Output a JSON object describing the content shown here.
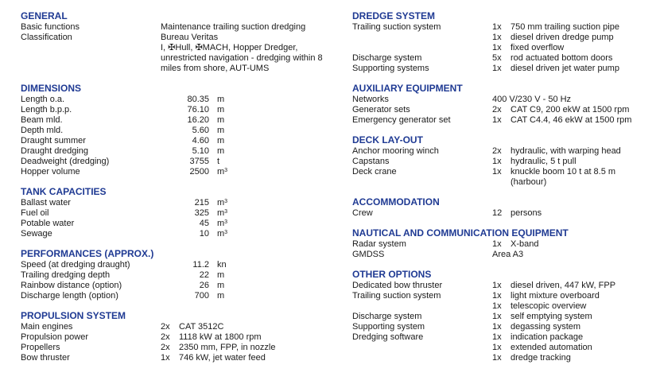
{
  "colors": {
    "heading": "#1f3a93",
    "text": "#1a1a1a"
  },
  "left_sections": [
    {
      "title": "GENERAL",
      "rows": [
        {
          "label": "Basic functions",
          "text": "Maintenance trailing suction dredging"
        },
        {
          "label": "Classification",
          "text": "Bureau Veritas"
        },
        {
          "label": "",
          "text": "I, ✠Hull, ✠MACH, Hopper Dredger,"
        },
        {
          "label": "",
          "text": "unrestricted navigation - dredging within 8"
        },
        {
          "label": "",
          "text": "miles from shore, AUT-UMS"
        }
      ]
    },
    {
      "title": "DIMENSIONS",
      "rows": [
        {
          "label": "Length o.a.",
          "num": "80.35",
          "unit": "m"
        },
        {
          "label": "Length b.p.p.",
          "num": "76.10",
          "unit": "m"
        },
        {
          "label": "Beam mld.",
          "num": "16.20",
          "unit": "m"
        },
        {
          "label": "Depth mld.",
          "num": "5.60",
          "unit": "m"
        },
        {
          "label": "Draught summer",
          "num": "4.60",
          "unit": "m"
        },
        {
          "label": "Draught dredging",
          "num": "5.10",
          "unit": "m"
        },
        {
          "label": "Deadweight (dredging)",
          "num": "3755",
          "unit": "t"
        },
        {
          "label": "Hopper volume",
          "num": "2500",
          "unit": "m",
          "sup": "3"
        }
      ]
    },
    {
      "title": "TANK CAPACITIES",
      "rows": [
        {
          "label": "Ballast water",
          "num": "215",
          "unit": "m",
          "sup": "3"
        },
        {
          "label": "Fuel oil",
          "num": "325",
          "unit": "m",
          "sup": "3"
        },
        {
          "label": "Potable water",
          "num": "45",
          "unit": "m",
          "sup": "3"
        },
        {
          "label": "Sewage",
          "num": "10",
          "unit": "m",
          "sup": "3"
        }
      ]
    },
    {
      "title": "PERFORMANCES (APPROX.)",
      "rows": [
        {
          "label": "Speed (at dredging draught)",
          "num": "11.2",
          "unit": "kn"
        },
        {
          "label": "Trailing dredging depth",
          "num": "22",
          "unit": "m"
        },
        {
          "label": "Rainbow distance (option)",
          "num": "26",
          "unit": "m"
        },
        {
          "label": "Discharge length (option)",
          "num": "700",
          "unit": "m"
        }
      ]
    },
    {
      "title": "PROPULSION SYSTEM",
      "rows": [
        {
          "label": "Main engines",
          "qty": "2x",
          "text": "CAT 3512C"
        },
        {
          "label": "Propulsion power",
          "qty": "2x",
          "text": "1118 kW at 1800 rpm"
        },
        {
          "label": "Propellers",
          "qty": "2x",
          "text": "2350 mm, FPP, in nozzle"
        },
        {
          "label": "Bow thruster",
          "qty": "1x",
          "text": "746 kW, jet water feed"
        }
      ]
    }
  ],
  "right_sections": [
    {
      "title": "DREDGE SYSTEM",
      "rows": [
        {
          "label": "Trailing suction system",
          "qty": "1x",
          "text": "750 mm trailing suction pipe"
        },
        {
          "label": "",
          "qty": "1x",
          "text": "diesel driven dredge pump"
        },
        {
          "label": "",
          "qty": "1x",
          "text": "fixed overflow"
        },
        {
          "label": "Discharge system",
          "qty": "5x",
          "text": "rod actuated bottom doors"
        },
        {
          "label": "Supporting systems",
          "qty": "1x",
          "text": "diesel driven jet water pump"
        }
      ]
    },
    {
      "title": "AUXILIARY EQUIPMENT",
      "rows": [
        {
          "label": "Networks",
          "text": "400  V/230 V - 50 Hz"
        },
        {
          "label": "Generator sets",
          "qty": "2x",
          "text": "CAT C9, 200 ekW at 1500 rpm"
        },
        {
          "label": "Emergency generator set",
          "qty": "1x",
          "text": "CAT C4.4, 46 ekW at 1500 rpm"
        }
      ]
    },
    {
      "title": "DECK LAY-OUT",
      "rows": [
        {
          "label": "Anchor mooring winch",
          "qty": "2x",
          "text": "hydraulic, with warping head"
        },
        {
          "label": "Capstans",
          "qty": "1x",
          "text": "hydraulic, 5 t pull"
        },
        {
          "label": "Deck crane",
          "qty": "1x",
          "text": "knuckle boom 10 t at 8.5 m"
        },
        {
          "label": "",
          "qty": "",
          "text": "(harbour)"
        }
      ]
    },
    {
      "title": "ACCOMMODATION",
      "rows": [
        {
          "label": "Crew",
          "qty": "12",
          "text": "persons"
        }
      ]
    },
    {
      "title": "NAUTICAL AND COMMUNICATION EQUIPMENT",
      "rows": [
        {
          "label": "Radar system",
          "qty": "1x",
          "text": "X-band"
        },
        {
          "label": "GMDSS",
          "text": "Area A3"
        }
      ]
    },
    {
      "title": "OTHER OPTIONS",
      "rows": [
        {
          "label": "Dedicated bow thruster",
          "qty": "1x",
          "text": "diesel driven, 447 kW, FPP"
        },
        {
          "label": "Trailing suction system",
          "qty": "1x",
          "text": "light mixture overboard"
        },
        {
          "label": "",
          "qty": "1x",
          "text": "telescopic overview"
        },
        {
          "label": "Discharge system",
          "qty": "1x",
          "text": "self emptying system"
        },
        {
          "label": "Supporting system",
          "qty": "1x",
          "text": "degassing system"
        },
        {
          "label": "Dredging software",
          "qty": "1x",
          "text": "indication package"
        },
        {
          "label": "",
          "qty": "1x",
          "text": "extended automation"
        },
        {
          "label": "",
          "qty": "1x",
          "text": "dredge tracking"
        }
      ]
    }
  ]
}
